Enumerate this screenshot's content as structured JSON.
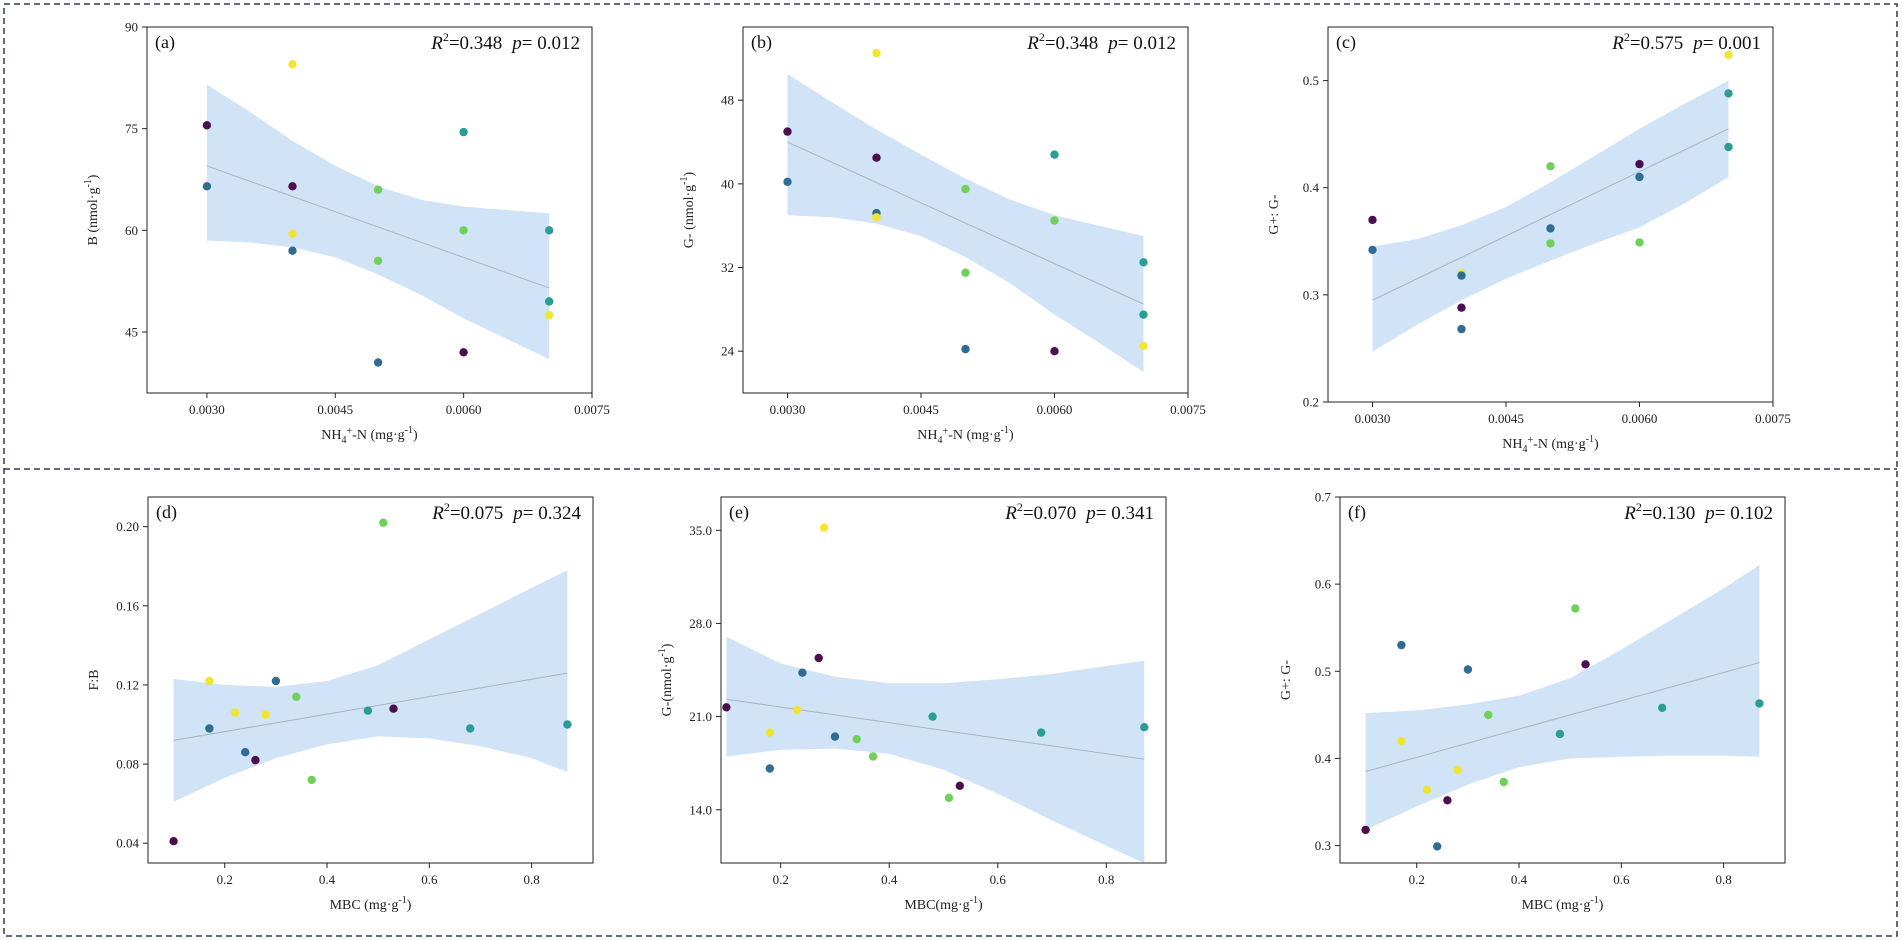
{
  "colors": {
    "ci_band": "#cfe2f5",
    "fit_line": "#a8b4c0",
    "frame": "#2f3a55",
    "c_purple": "#4b0f4f",
    "c_blue": "#2f6c92",
    "c_teal": "#2a9e96",
    "c_green": "#6fd05a",
    "c_yellow": "#f2e531"
  },
  "chart_data": [
    {
      "type": "scatter",
      "panel": "(a)",
      "ylabel": "B (nmol·g",
      "ylabel_sup": "-1",
      "ylabel_end": ")",
      "xlabel_pre": "NH",
      "xlabel_sub": "4",
      "xlabel_sup": "+",
      "xlabel_post": "-N (mg·g",
      "xlabel_sup2": "-1",
      "xlabel_end": ")",
      "r2_label": "R",
      "r2_sup": "2",
      "r2_value": "=0.348",
      "p_label": "p",
      "p_value": "= 0.012",
      "xlim": [
        0.0023,
        0.0075
      ],
      "ylim": [
        36,
        90
      ],
      "xticks": [
        0.003,
        0.0045,
        0.006,
        0.0075
      ],
      "xtick_labels": [
        "0.0030",
        "0.0045",
        "0.0060",
        "0.0075"
      ],
      "yticks": [
        45,
        60,
        75,
        90
      ],
      "ytick_labels": [
        "45",
        "60",
        "75",
        "90"
      ],
      "fit": {
        "x": [
          0.003,
          0.007
        ],
        "y": [
          69.5,
          51.5
        ]
      },
      "ci": {
        "x": [
          0.003,
          0.0035,
          0.004,
          0.0045,
          0.005,
          0.0055,
          0.006,
          0.0065,
          0.007
        ],
        "upper": [
          81.5,
          77.5,
          73.2,
          69.5,
          66.5,
          64.5,
          63.5,
          63.0,
          62.5
        ],
        "lower": [
          58.5,
          58.2,
          57.5,
          56.0,
          53.5,
          50.5,
          47.0,
          44.0,
          41.0
        ]
      },
      "points": [
        {
          "x": 0.003,
          "y": 75.5,
          "c": "c_purple"
        },
        {
          "x": 0.003,
          "y": 66.5,
          "c": "c_blue"
        },
        {
          "x": 0.004,
          "y": 84.5,
          "c": "c_yellow"
        },
        {
          "x": 0.004,
          "y": 66.5,
          "c": "c_purple"
        },
        {
          "x": 0.004,
          "y": 59.5,
          "c": "c_yellow"
        },
        {
          "x": 0.004,
          "y": 57.0,
          "c": "c_blue"
        },
        {
          "x": 0.005,
          "y": 66.0,
          "c": "c_green"
        },
        {
          "x": 0.005,
          "y": 55.5,
          "c": "c_green"
        },
        {
          "x": 0.005,
          "y": 40.5,
          "c": "c_blue"
        },
        {
          "x": 0.006,
          "y": 74.5,
          "c": "c_teal"
        },
        {
          "x": 0.006,
          "y": 60.0,
          "c": "c_green"
        },
        {
          "x": 0.006,
          "y": 42.0,
          "c": "c_purple"
        },
        {
          "x": 0.007,
          "y": 60.0,
          "c": "c_teal"
        },
        {
          "x": 0.007,
          "y": 49.5,
          "c": "c_teal"
        },
        {
          "x": 0.007,
          "y": 47.5,
          "c": "c_yellow"
        }
      ]
    },
    {
      "type": "scatter",
      "panel": "(b)",
      "ylabel": "G- (nmol·g",
      "ylabel_sup": "-1",
      "ylabel_end": ")",
      "xlabel_pre": "NH",
      "xlabel_sub": "4",
      "xlabel_sup": "+",
      "xlabel_post": "-N (mg·g",
      "xlabel_sup2": "-1",
      "xlabel_end": ")",
      "r2_label": "R",
      "r2_sup": "2",
      "r2_value": "=0.348",
      "p_label": "p",
      "p_value": "= 0.012",
      "xlim": [
        0.0025,
        0.0075
      ],
      "ylim": [
        20,
        55
      ],
      "xticks": [
        0.003,
        0.0045,
        0.006,
        0.0075
      ],
      "xtick_labels": [
        "0.0030",
        "0.0045",
        "0.0060",
        "0.0075"
      ],
      "yticks": [
        24,
        32,
        40,
        48
      ],
      "ytick_labels": [
        "24",
        "32",
        "40",
        "48"
      ],
      "fit": {
        "x": [
          0.003,
          0.007
        ],
        "y": [
          44.0,
          28.5
        ]
      },
      "ci": {
        "x": [
          0.003,
          0.0035,
          0.004,
          0.0045,
          0.005,
          0.0055,
          0.006,
          0.0065,
          0.007
        ],
        "upper": [
          50.5,
          47.8,
          45.2,
          42.8,
          40.5,
          38.5,
          37.0,
          36.0,
          35.0
        ],
        "lower": [
          37.0,
          36.8,
          36.2,
          35.0,
          33.0,
          30.5,
          27.5,
          24.8,
          22.0
        ]
      },
      "points": [
        {
          "x": 0.003,
          "y": 45.0,
          "c": "c_purple"
        },
        {
          "x": 0.003,
          "y": 40.2,
          "c": "c_blue"
        },
        {
          "x": 0.004,
          "y": 52.5,
          "c": "c_yellow"
        },
        {
          "x": 0.004,
          "y": 42.5,
          "c": "c_purple"
        },
        {
          "x": 0.004,
          "y": 37.2,
          "c": "c_blue"
        },
        {
          "x": 0.004,
          "y": 36.8,
          "c": "c_yellow"
        },
        {
          "x": 0.005,
          "y": 39.5,
          "c": "c_green"
        },
        {
          "x": 0.005,
          "y": 31.5,
          "c": "c_green"
        },
        {
          "x": 0.005,
          "y": 24.2,
          "c": "c_blue"
        },
        {
          "x": 0.006,
          "y": 42.8,
          "c": "c_teal"
        },
        {
          "x": 0.006,
          "y": 36.5,
          "c": "c_green"
        },
        {
          "x": 0.006,
          "y": 24.0,
          "c": "c_purple"
        },
        {
          "x": 0.007,
          "y": 32.5,
          "c": "c_teal"
        },
        {
          "x": 0.007,
          "y": 27.5,
          "c": "c_teal"
        },
        {
          "x": 0.007,
          "y": 24.5,
          "c": "c_yellow"
        }
      ]
    },
    {
      "type": "scatter",
      "panel": "(c)",
      "ylabel": "G+: G-",
      "ylabel_sup": "",
      "ylabel_end": "",
      "xlabel_pre": "NH",
      "xlabel_sub": "4",
      "xlabel_sup": "+",
      "xlabel_post": "-N (mg·g",
      "xlabel_sup2": "-1",
      "xlabel_end": ")",
      "r2_label": "R",
      "r2_sup": "2",
      "r2_value": "=0.575",
      "p_label": "p",
      "p_value": "= 0.001",
      "xlim": [
        0.0025,
        0.0075
      ],
      "ylim": [
        0.2,
        0.55
      ],
      "xticks": [
        0.003,
        0.0045,
        0.006,
        0.0075
      ],
      "xtick_labels": [
        "0.0030",
        "0.0045",
        "0.0060",
        "0.0075"
      ],
      "yticks": [
        0.2,
        0.3,
        0.4,
        0.5
      ],
      "ytick_labels": [
        "0.2",
        "0.3",
        "0.4",
        "0.5"
      ],
      "fit": {
        "x": [
          0.003,
          0.007
        ],
        "y": [
          0.295,
          0.455
        ]
      },
      "ci": {
        "x": [
          0.003,
          0.0035,
          0.004,
          0.0045,
          0.005,
          0.0055,
          0.006,
          0.0065,
          0.007
        ],
        "upper": [
          0.345,
          0.352,
          0.365,
          0.382,
          0.405,
          0.43,
          0.455,
          0.478,
          0.5
        ],
        "lower": [
          0.247,
          0.272,
          0.295,
          0.315,
          0.332,
          0.348,
          0.363,
          0.385,
          0.41
        ]
      },
      "points": [
        {
          "x": 0.003,
          "y": 0.37,
          "c": "c_purple"
        },
        {
          "x": 0.003,
          "y": 0.342,
          "c": "c_blue"
        },
        {
          "x": 0.004,
          "y": 0.32,
          "c": "c_yellow"
        },
        {
          "x": 0.004,
          "y": 0.318,
          "c": "c_blue"
        },
        {
          "x": 0.004,
          "y": 0.288,
          "c": "c_purple"
        },
        {
          "x": 0.004,
          "y": 0.268,
          "c": "c_blue"
        },
        {
          "x": 0.005,
          "y": 0.42,
          "c": "c_green"
        },
        {
          "x": 0.005,
          "y": 0.362,
          "c": "c_blue"
        },
        {
          "x": 0.005,
          "y": 0.348,
          "c": "c_green"
        },
        {
          "x": 0.006,
          "y": 0.422,
          "c": "c_purple"
        },
        {
          "x": 0.006,
          "y": 0.41,
          "c": "c_blue"
        },
        {
          "x": 0.006,
          "y": 0.349,
          "c": "c_green"
        },
        {
          "x": 0.007,
          "y": 0.524,
          "c": "c_yellow"
        },
        {
          "x": 0.007,
          "y": 0.488,
          "c": "c_teal"
        },
        {
          "x": 0.007,
          "y": 0.438,
          "c": "c_teal"
        }
      ]
    },
    {
      "type": "scatter",
      "panel": "(d)",
      "ylabel": "F:B",
      "ylabel_sup": "",
      "ylabel_end": "",
      "xlabel_pre": "MBC (mg·g",
      "xlabel_sub": "",
      "xlabel_sup": "-1",
      "xlabel_post": ")",
      "xlabel_sup2": "",
      "xlabel_end": "",
      "r2_label": "R",
      "r2_sup": "2",
      "r2_value": "=0.075",
      "p_label": "p",
      "p_value": "= 0.324",
      "xlim": [
        0.05,
        0.92
      ],
      "ylim": [
        0.03,
        0.215
      ],
      "xticks": [
        0.2,
        0.4,
        0.6,
        0.8
      ],
      "xtick_labels": [
        "0.2",
        "0.4",
        "0.6",
        "0.8"
      ],
      "yticks": [
        0.04,
        0.08,
        0.12,
        0.16,
        0.2
      ],
      "ytick_labels": [
        "0.04",
        "0.08",
        "0.12",
        "0.16",
        "0.20"
      ],
      "fit": {
        "x": [
          0.1,
          0.87
        ],
        "y": [
          0.092,
          0.126
        ]
      },
      "ci": {
        "x": [
          0.1,
          0.2,
          0.3,
          0.4,
          0.5,
          0.6,
          0.7,
          0.8,
          0.87
        ],
        "upper": [
          0.123,
          0.12,
          0.119,
          0.122,
          0.13,
          0.143,
          0.156,
          0.169,
          0.178
        ],
        "lower": [
          0.061,
          0.073,
          0.083,
          0.09,
          0.094,
          0.093,
          0.089,
          0.083,
          0.076
        ]
      },
      "points": [
        {
          "x": 0.1,
          "y": 0.041,
          "c": "c_purple"
        },
        {
          "x": 0.17,
          "y": 0.098,
          "c": "c_blue"
        },
        {
          "x": 0.17,
          "y": 0.122,
          "c": "c_yellow"
        },
        {
          "x": 0.22,
          "y": 0.106,
          "c": "c_yellow"
        },
        {
          "x": 0.24,
          "y": 0.086,
          "c": "c_blue"
        },
        {
          "x": 0.26,
          "y": 0.082,
          "c": "c_purple"
        },
        {
          "x": 0.28,
          "y": 0.105,
          "c": "c_yellow"
        },
        {
          "x": 0.3,
          "y": 0.122,
          "c": "c_blue"
        },
        {
          "x": 0.34,
          "y": 0.114,
          "c": "c_green"
        },
        {
          "x": 0.37,
          "y": 0.072,
          "c": "c_green"
        },
        {
          "x": 0.48,
          "y": 0.107,
          "c": "c_teal"
        },
        {
          "x": 0.51,
          "y": 0.202,
          "c": "c_green"
        },
        {
          "x": 0.53,
          "y": 0.108,
          "c": "c_purple"
        },
        {
          "x": 0.68,
          "y": 0.098,
          "c": "c_teal"
        },
        {
          "x": 0.87,
          "y": 0.1,
          "c": "c_teal"
        }
      ]
    },
    {
      "type": "scatter",
      "panel": "(e)",
      "ylabel": "G-(nmol·g",
      "ylabel_sup": "-1",
      "ylabel_end": ")",
      "xlabel_pre": "MBC(mg·g",
      "xlabel_sub": "",
      "xlabel_sup": "-1",
      "xlabel_post": ")",
      "xlabel_sup2": "",
      "xlabel_end": "",
      "r2_label": "R",
      "r2_sup": "2",
      "r2_value": "=0.070",
      "p_label": "p",
      "p_value": "= 0.341",
      "xlim": [
        0.09,
        0.91
      ],
      "ylim": [
        10,
        37.5
      ],
      "xticks": [
        0.2,
        0.4,
        0.6,
        0.8
      ],
      "xtick_labels": [
        "0.2",
        "0.4",
        "0.6",
        "0.8"
      ],
      "yticks": [
        14,
        21,
        28,
        35
      ],
      "ytick_labels": [
        "14.0",
        "21.0",
        "28.0",
        "35.0"
      ],
      "fit": {
        "x": [
          0.1,
          0.87
        ],
        "y": [
          22.3,
          17.8
        ]
      },
      "ci": {
        "x": [
          0.1,
          0.2,
          0.3,
          0.4,
          0.5,
          0.6,
          0.7,
          0.8,
          0.87
        ],
        "upper": [
          27.0,
          25.0,
          24.0,
          23.5,
          23.5,
          23.8,
          24.2,
          24.8,
          25.2
        ],
        "lower": [
          18.0,
          18.5,
          18.6,
          18.2,
          17.0,
          15.2,
          13.2,
          11.3,
          10.0
        ]
      },
      "points": [
        {
          "x": 0.1,
          "y": 21.7,
          "c": "c_purple"
        },
        {
          "x": 0.18,
          "y": 19.8,
          "c": "c_yellow"
        },
        {
          "x": 0.18,
          "y": 17.1,
          "c": "c_blue"
        },
        {
          "x": 0.23,
          "y": 21.5,
          "c": "c_yellow"
        },
        {
          "x": 0.24,
          "y": 24.3,
          "c": "c_blue"
        },
        {
          "x": 0.27,
          "y": 25.4,
          "c": "c_purple"
        },
        {
          "x": 0.28,
          "y": 35.2,
          "c": "c_yellow"
        },
        {
          "x": 0.3,
          "y": 19.5,
          "c": "c_blue"
        },
        {
          "x": 0.34,
          "y": 19.3,
          "c": "c_green"
        },
        {
          "x": 0.37,
          "y": 18.0,
          "c": "c_green"
        },
        {
          "x": 0.48,
          "y": 21.0,
          "c": "c_teal"
        },
        {
          "x": 0.51,
          "y": 14.9,
          "c": "c_green"
        },
        {
          "x": 0.53,
          "y": 15.8,
          "c": "c_purple"
        },
        {
          "x": 0.68,
          "y": 19.8,
          "c": "c_teal"
        },
        {
          "x": 0.87,
          "y": 20.2,
          "c": "c_teal"
        }
      ]
    },
    {
      "type": "scatter",
      "panel": "(f)",
      "ylabel": "G+: G-",
      "ylabel_sup": "",
      "ylabel_end": "",
      "xlabel_pre": "MBC (mg·g",
      "xlabel_sub": "",
      "xlabel_sup": "-1",
      "xlabel_post": ")",
      "xlabel_sup2": "",
      "xlabel_end": "",
      "r2_label": "R",
      "r2_sup": "2",
      "r2_value": "=0.130",
      "p_label": "p",
      "p_value": "= 0.102",
      "xlim": [
        0.05,
        0.92
      ],
      "ylim": [
        0.28,
        0.7
      ],
      "xticks": [
        0.2,
        0.4,
        0.6,
        0.8
      ],
      "xtick_labels": [
        "0.2",
        "0.4",
        "0.6",
        "0.8"
      ],
      "yticks": [
        0.3,
        0.4,
        0.5,
        0.6,
        0.7
      ],
      "ytick_labels": [
        "0.3",
        "0.4",
        "0.5",
        "0.6",
        "0.7"
      ],
      "fit": {
        "x": [
          0.1,
          0.87
        ],
        "y": [
          0.385,
          0.51
        ]
      },
      "ci": {
        "x": [
          0.1,
          0.2,
          0.3,
          0.4,
          0.5,
          0.6,
          0.7,
          0.8,
          0.87
        ],
        "upper": [
          0.452,
          0.455,
          0.462,
          0.472,
          0.492,
          0.525,
          0.56,
          0.595,
          0.622
        ],
        "lower": [
          0.318,
          0.345,
          0.37,
          0.39,
          0.4,
          0.402,
          0.403,
          0.403,
          0.402
        ]
      },
      "points": [
        {
          "x": 0.1,
          "y": 0.318,
          "c": "c_purple"
        },
        {
          "x": 0.17,
          "y": 0.53,
          "c": "c_blue"
        },
        {
          "x": 0.17,
          "y": 0.42,
          "c": "c_yellow"
        },
        {
          "x": 0.22,
          "y": 0.364,
          "c": "c_yellow"
        },
        {
          "x": 0.24,
          "y": 0.299,
          "c": "c_blue"
        },
        {
          "x": 0.26,
          "y": 0.352,
          "c": "c_purple"
        },
        {
          "x": 0.28,
          "y": 0.387,
          "c": "c_yellow"
        },
        {
          "x": 0.3,
          "y": 0.502,
          "c": "c_blue"
        },
        {
          "x": 0.34,
          "y": 0.45,
          "c": "c_green"
        },
        {
          "x": 0.37,
          "y": 0.373,
          "c": "c_green"
        },
        {
          "x": 0.48,
          "y": 0.428,
          "c": "c_teal"
        },
        {
          "x": 0.51,
          "y": 0.572,
          "c": "c_green"
        },
        {
          "x": 0.53,
          "y": 0.508,
          "c": "c_purple"
        },
        {
          "x": 0.68,
          "y": 0.458,
          "c": "c_teal"
        },
        {
          "x": 0.87,
          "y": 0.463,
          "c": "c_teal"
        }
      ]
    }
  ]
}
